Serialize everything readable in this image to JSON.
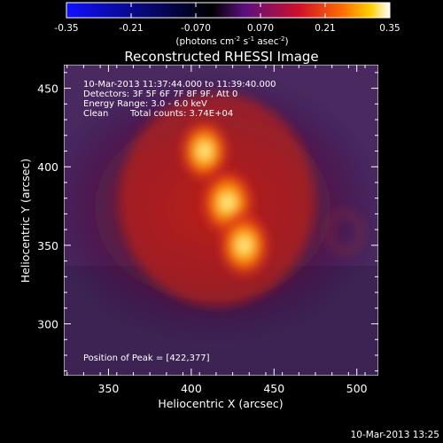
{
  "colorbar": {
    "ticks": [
      "-0.35",
      "-0.21",
      "-0.070",
      "0.070",
      "0.21",
      "0.35"
    ],
    "tick_values": [
      -0.35,
      -0.21,
      -0.07,
      0.07,
      0.21,
      0.35
    ],
    "range": [
      -0.35,
      0.35
    ],
    "unit_main": "(photons cm",
    "unit_sup1": "-2",
    "unit_mid": " s",
    "unit_sup2": "-1",
    "unit_mid2": " asec",
    "unit_sup3": "-2",
    "unit_end": ")",
    "colors": [
      "#1010ff",
      "#000000",
      "#6a1a8a",
      "#c8102a",
      "#ff5000",
      "#ffb800",
      "#ffffff"
    ]
  },
  "footer": {
    "timestamp": "10-Mar-2013 13:25"
  },
  "chart_data": {
    "type": "heatmap",
    "title": "Reconstructed RHESSI Image",
    "xlabel": "Heliocentric X (arcsec)",
    "ylabel": "Heliocentric Y (arcsec)",
    "xlim": [
      323,
      513
    ],
    "ylim": [
      267,
      465
    ],
    "xticks": [
      350,
      400,
      450,
      500
    ],
    "yticks": [
      300,
      350,
      400,
      450
    ],
    "annotations": {
      "time": "10-Mar-2013 11:37:44.000 to 11:39:40.000",
      "detectors": "Detectors: 3F 5F 6F 7F 8F 9F, Att 0",
      "energy": "Energy Range: 3.0 - 6.0 keV",
      "clean_label": "Clean",
      "counts": "Total counts: 3.74E+04",
      "peak": "Position of Peak = [422,377]"
    },
    "sources": [
      {
        "x": 408,
        "y": 410,
        "intensity": 0.31
      },
      {
        "x": 422,
        "y": 377,
        "intensity": 0.35
      },
      {
        "x": 432,
        "y": 350,
        "intensity": 0.33
      }
    ],
    "peak": [
      422,
      377
    ],
    "grid": false
  }
}
